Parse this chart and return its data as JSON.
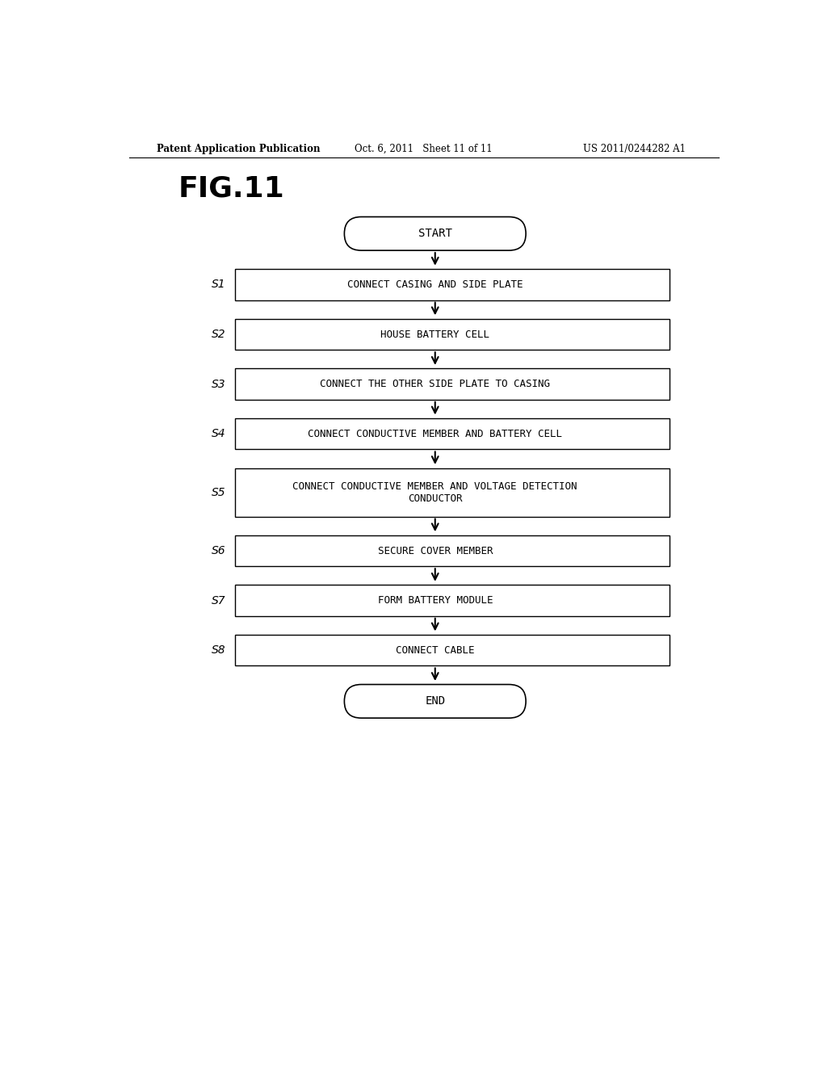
{
  "title": "FIG.11",
  "header_left": "Patent Application Publication",
  "header_center": "Oct. 6, 2011   Sheet 11 of 11",
  "header_right": "US 2011/0244282 A1",
  "start_label": "START",
  "end_label": "END",
  "steps": [
    {
      "id": "S1",
      "text": "CONNECT CASING AND SIDE PLATE",
      "tall": false
    },
    {
      "id": "S2",
      "text": "HOUSE BATTERY CELL",
      "tall": false
    },
    {
      "id": "S3",
      "text": "CONNECT THE OTHER SIDE PLATE TO CASING",
      "tall": false
    },
    {
      "id": "S4",
      "text": "CONNECT CONDUCTIVE MEMBER AND BATTERY CELL",
      "tall": false
    },
    {
      "id": "S5",
      "text": "CONNECT CONDUCTIVE MEMBER AND VOLTAGE DETECTION\nCONDUCTOR",
      "tall": true
    },
    {
      "id": "S6",
      "text": "SECURE COVER MEMBER",
      "tall": false
    },
    {
      "id": "S7",
      "text": "FORM BATTERY MODULE",
      "tall": false
    },
    {
      "id": "S8",
      "text": "CONNECT CABLE",
      "tall": false
    }
  ],
  "bg_color": "#ffffff",
  "box_edge_color": "#000000",
  "box_fill_color": "#ffffff",
  "text_color": "#000000",
  "arrow_color": "#000000",
  "fig_width": 10.24,
  "fig_height": 13.2,
  "dpi": 100
}
